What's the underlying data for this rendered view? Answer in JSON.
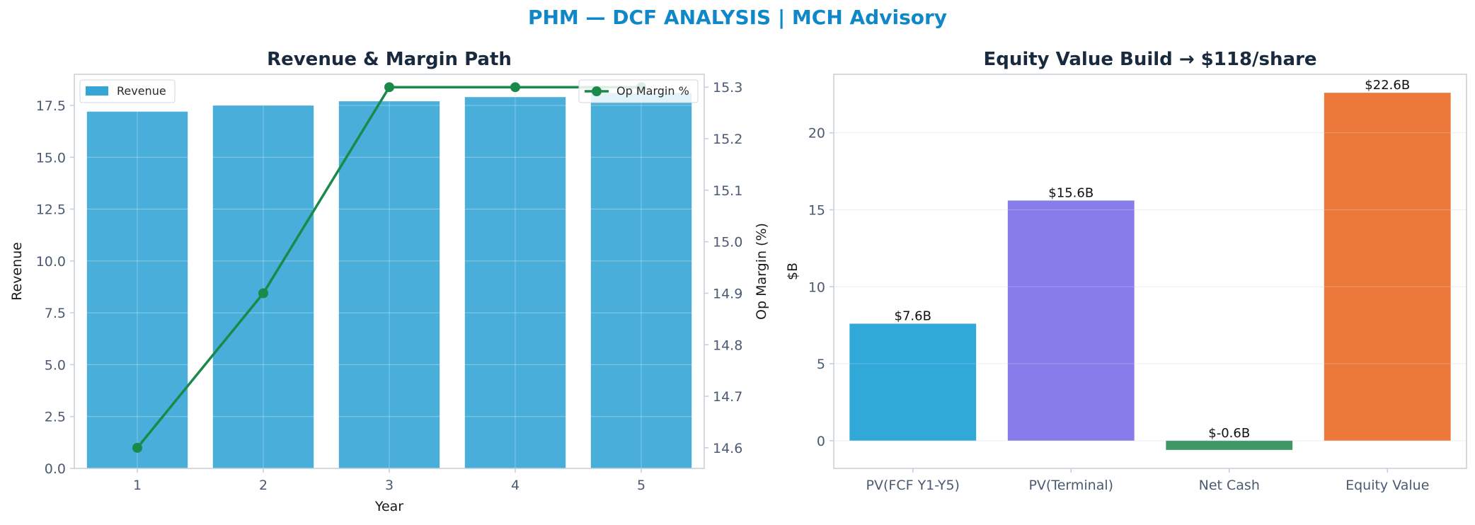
{
  "page": {
    "suptitle": "PHM — DCF ANALYSIS | MCH Advisory"
  },
  "chart_data": [
    {
      "type": "bar",
      "title": "Revenue & Margin Path",
      "xlabel": "Year",
      "ylabel": "Revenue",
      "y2label": "Op Margin (%)",
      "categories": [
        "1",
        "2",
        "3",
        "4",
        "5"
      ],
      "ylim": [
        0,
        19
      ],
      "y_ticks": [
        "0.0",
        "2.5",
        "5.0",
        "7.5",
        "10.0",
        "12.5",
        "15.0",
        "17.5"
      ],
      "y2lim": [
        14.56,
        15.325
      ],
      "y2_ticks": [
        "14.6",
        "14.7",
        "14.8",
        "14.9",
        "15.0",
        "15.1",
        "15.2",
        "15.3"
      ],
      "grid": true,
      "series": [
        {
          "name": "Revenue",
          "type": "bar",
          "axis": "left",
          "color": "#35a5d6",
          "values": [
            17.2,
            17.5,
            17.7,
            17.9,
            18.1
          ]
        },
        {
          "name": "Op Margin %",
          "type": "line",
          "axis": "right",
          "color": "#1a8a4a",
          "values": [
            14.6,
            14.9,
            15.3,
            15.3,
            15.3
          ]
        }
      ],
      "legends": [
        {
          "series": "Revenue",
          "placement": "upper-left"
        },
        {
          "series": "Op Margin %",
          "placement": "upper-right"
        }
      ]
    },
    {
      "type": "bar",
      "title": "Equity Value Build → $118/share",
      "xlabel": "",
      "ylabel": "$B",
      "categories": [
        "PV(FCF Y1-Y5)",
        "PV(Terminal)",
        "Net Cash",
        "Equity Value"
      ],
      "values": [
        7.6,
        15.6,
        -0.6,
        22.6
      ],
      "data_labels": [
        "$7.6B",
        "$15.6B",
        "$-0.6B",
        "$22.6B"
      ],
      "colors": [
        "#1a9fd4",
        "#7b6ee8",
        "#2a8c55",
        "#ea6a25"
      ],
      "ylim": [
        -1.8,
        23.8
      ],
      "y_ticks": [
        "0",
        "5",
        "10",
        "15",
        "20"
      ],
      "grid": true
    }
  ]
}
